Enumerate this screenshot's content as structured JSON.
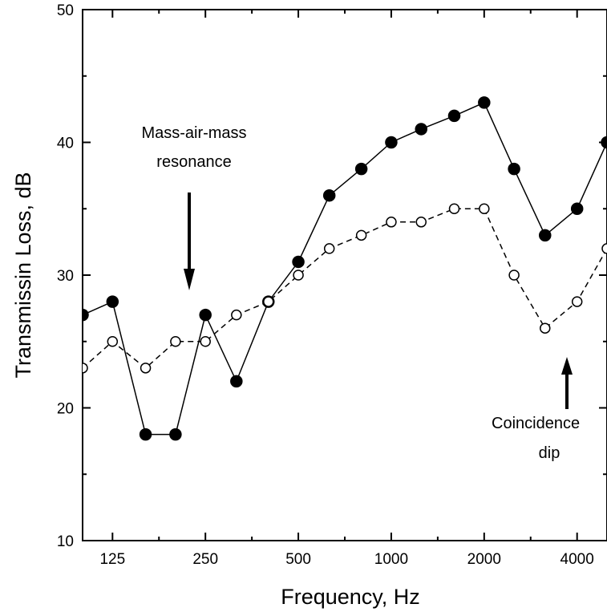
{
  "chart_data": {
    "type": "line",
    "xlabel": "Frequency, Hz",
    "ylabel": "Transmissin Loss, dB",
    "x_scale": "log",
    "xlim": [
      100,
      5000
    ],
    "ylim": [
      10,
      50
    ],
    "x_ticks": [
      125,
      250,
      500,
      1000,
      2000,
      4000
    ],
    "x_tick_labels": [
      "125",
      "250",
      "500",
      "1000",
      "2000",
      "4000"
    ],
    "y_ticks": [
      10,
      20,
      30,
      40,
      50
    ],
    "y_tick_labels": [
      "10",
      "20",
      "30",
      "40",
      "50"
    ],
    "x": [
      100,
      125,
      160,
      200,
      250,
      315,
      400,
      500,
      630,
      800,
      1000,
      1250,
      1600,
      2000,
      2500,
      3150,
      4000,
      5000
    ],
    "series": [
      {
        "marker": "filled-circle",
        "line_style": "solid",
        "values": [
          27,
          28,
          18,
          18,
          27,
          22,
          28,
          31,
          36,
          38,
          40,
          41,
          42,
          43,
          38,
          33,
          35,
          40
        ]
      },
      {
        "marker": "open-circle",
        "line_style": "dashed",
        "values": [
          23,
          25,
          23,
          25,
          25,
          27,
          28,
          30,
          32,
          33,
          34,
          34,
          35,
          35,
          30,
          26,
          28,
          32
        ]
      }
    ],
    "annotations": [
      {
        "text": [
          "Mass-air-mass",
          "resonance"
        ],
        "arrow": "down"
      },
      {
        "text": [
          "Coincidence",
          "dip"
        ],
        "arrow": "up"
      }
    ],
    "grid": false,
    "legend": "none"
  }
}
